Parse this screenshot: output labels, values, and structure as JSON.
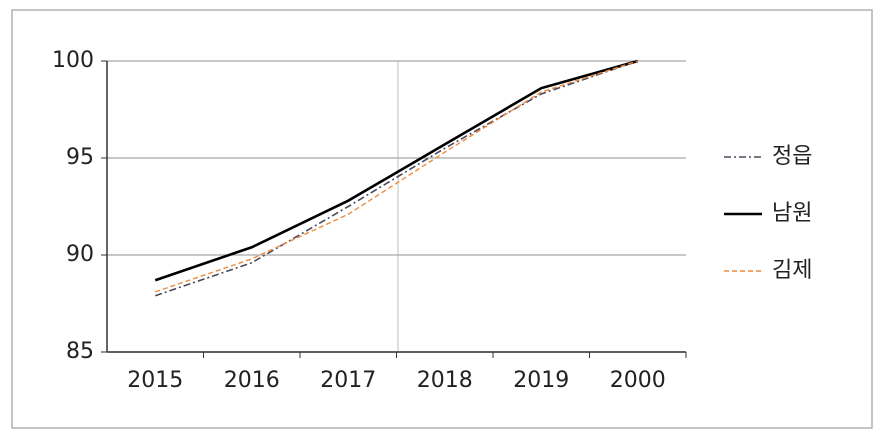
{
  "chart_data": {
    "type": "line",
    "categories": [
      "2015",
      "2016",
      "2017",
      "2018",
      "2019",
      "2000"
    ],
    "series": [
      {
        "name": "정읍",
        "color": "#4a4a5e",
        "dash": "dashdot",
        "values": [
          87.9,
          89.6,
          92.5,
          95.5,
          98.3,
          100
        ]
      },
      {
        "name": "남원",
        "color": "#000000",
        "dash": "solid",
        "values": [
          88.7,
          90.4,
          92.8,
          95.7,
          98.6,
          100
        ]
      },
      {
        "name": "김제",
        "color": "#f08a3c",
        "dash": "dashed",
        "values": [
          88.1,
          89.8,
          92.1,
          95.3,
          98.4,
          100
        ]
      }
    ],
    "ylim": [
      85,
      100
    ],
    "yticks": [
      85,
      90,
      95,
      100
    ],
    "grid": true,
    "legend": "right"
  }
}
